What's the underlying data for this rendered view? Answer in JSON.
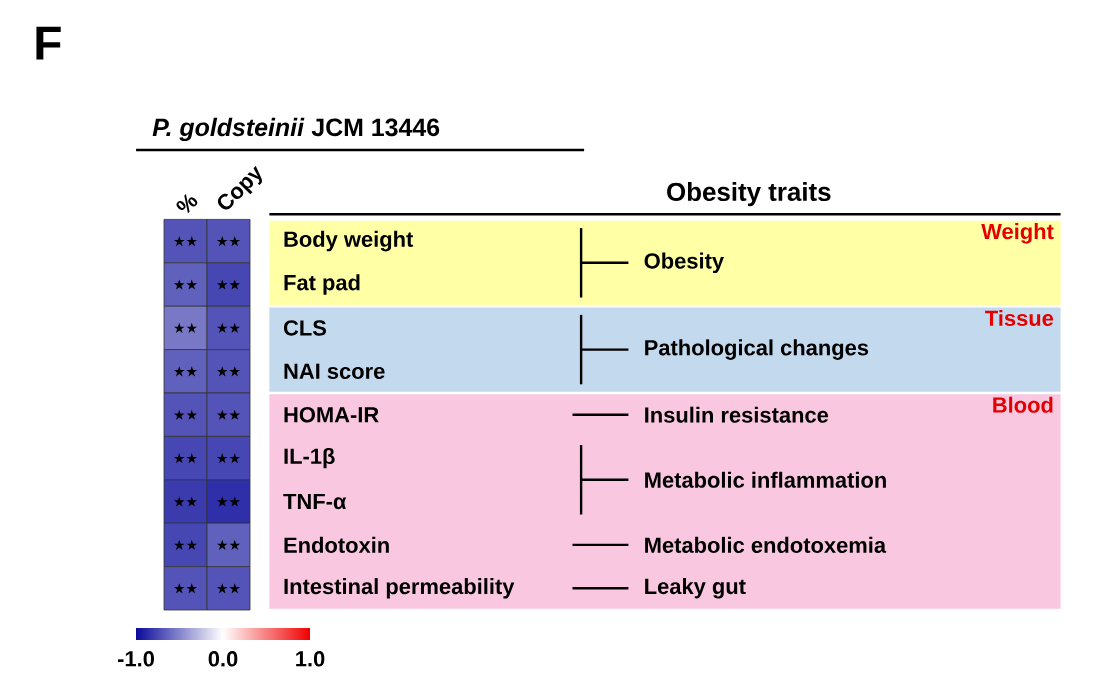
{
  "chart_data": {
    "type": "heatmap",
    "title": "*P. goldsteinii* JCM 13446",
    "subtitle": "Obesity traits",
    "categories": [
      "%",
      "Copy"
    ],
    "y_categories": [
      "Body weight",
      "Fat pad",
      "CLS",
      "NAI score",
      "HOMA-IR",
      "IL-1β",
      "TNF-α",
      "Endotoxin",
      "Intestinal permeability"
    ],
    "cells": [
      [
        -0.7,
        -0.7
      ],
      [
        -0.65,
        -0.75
      ],
      [
        -0.55,
        -0.7
      ],
      [
        -0.65,
        -0.7
      ],
      [
        -0.7,
        -0.7
      ],
      [
        -0.75,
        -0.75
      ],
      [
        -0.8,
        -0.85
      ],
      [
        -0.75,
        -0.65
      ],
      [
        -0.7,
        -0.7
      ]
    ],
    "cell_labels": [
      [
        "★★",
        "★★"
      ],
      [
        "★★",
        "★★"
      ],
      [
        "★★",
        "★★"
      ],
      [
        "★★",
        "★★"
      ],
      [
        "★★",
        "★★"
      ],
      [
        "★★",
        "★★"
      ],
      [
        "★★",
        "★★"
      ],
      [
        "★★",
        "★★"
      ],
      [
        "★★",
        "★★"
      ]
    ],
    "clim": [
      -1,
      1
    ],
    "cticks": [
      {
        "value": -1,
        "label": "-1.0"
      },
      {
        "value": 0,
        "label": "0.0"
      },
      {
        "value": 1,
        "label": "1.0"
      }
    ],
    "bands": [
      {
        "axis": "y",
        "from": "Body weight",
        "to": "Fat pad",
        "label": "Weight",
        "color": "#ffffa6"
      },
      {
        "axis": "y",
        "from": "CLS",
        "to": "NAI score",
        "label": "Tissue",
        "color": "#c2d9ee"
      },
      {
        "axis": "y",
        "from": "HOMA-IR",
        "to": "Intestinal permeability",
        "label": "Blood",
        "color": "#f9c8e0"
      }
    ],
    "y2_categories": [
      "Obesity",
      null,
      "Pathological changes",
      null,
      "Insulin resistance",
      "Metabolic inflammation",
      null,
      "Metabolic endotoxemia",
      "Leaky gut"
    ],
    "annotations": [
      "F"
    ]
  }
}
